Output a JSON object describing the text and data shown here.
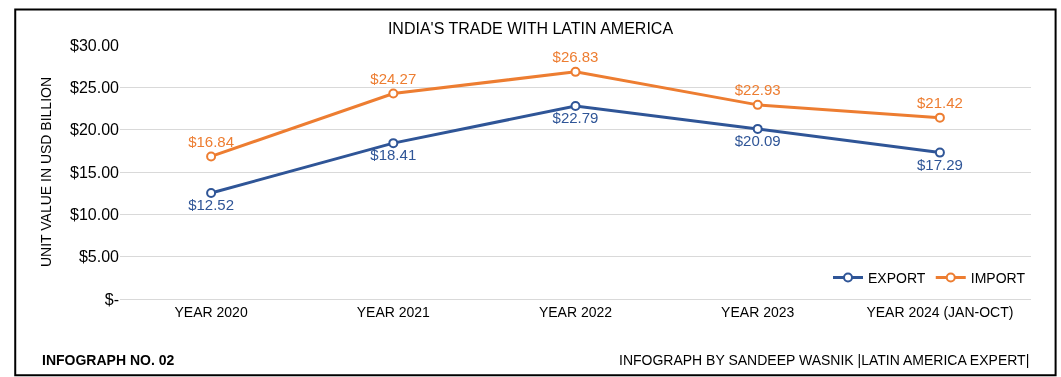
{
  "chart_data": {
    "type": "line",
    "title": "INDIA'S TRADE WITH LATIN AMERICA",
    "ylabel": "UNIT VALUE IN USD BILLION",
    "categories": [
      "YEAR 2020",
      "YEAR 2021",
      "YEAR 2022",
      "YEAR 2023",
      "YEAR 2024 (JAN-OCT)"
    ],
    "series": [
      {
        "name": "EXPORT",
        "color": "#2f5597",
        "values": [
          12.52,
          18.41,
          22.79,
          20.09,
          17.29
        ],
        "value_labels": [
          "$12.52",
          "$18.41",
          "$22.79",
          "$20.09",
          "$17.29"
        ]
      },
      {
        "name": "IMPORT",
        "color": "#ed7d31",
        "values": [
          16.84,
          24.27,
          26.83,
          22.93,
          21.42
        ],
        "value_labels": [
          "$16.84",
          "$24.27",
          "$26.83",
          "$22.93",
          "$21.42"
        ]
      }
    ],
    "ylim": [
      0,
      30
    ],
    "yticks": [
      {
        "value": 0,
        "label": "$-"
      },
      {
        "value": 5,
        "label": "$5.00"
      },
      {
        "value": 10,
        "label": "$10.00"
      },
      {
        "value": 15,
        "label": "$15.00"
      },
      {
        "value": 20,
        "label": "$20.00"
      },
      {
        "value": 25,
        "label": "$25.00"
      },
      {
        "value": 30,
        "label": "$30.00"
      }
    ],
    "grid": "y",
    "legend": "bottom right",
    "marker": "circle",
    "line_style": "solid",
    "annotations": [
      "INFOGRAPH NO. 02",
      "INFOGRAPH BY SANDEEP WASNIK |LATIN AMERICA EXPERT|"
    ]
  }
}
